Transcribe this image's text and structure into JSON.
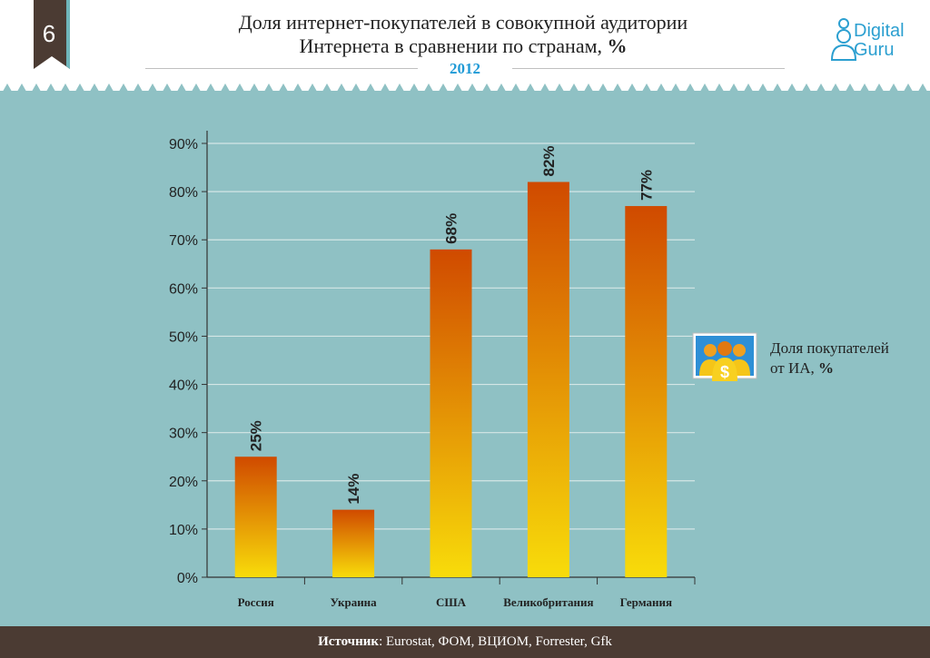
{
  "page": {
    "slide_number": "6",
    "title_line1": "Доля интернет-покупателей в совокупной аудитории",
    "title_line2": "Интернета в сравнении по странам,",
    "title_unit": "%",
    "year": "2012",
    "logo_line1": "Digital",
    "logo_line2": "Guru",
    "source_label": "Источник",
    "source_text": ": Eurostat, ФОМ, ВЦИОМ, Forrester, Gfk"
  },
  "legend": {
    "label_line1": "Доля покупателей",
    "label_line2": "от ИА,",
    "label_unit": "%",
    "icon": "people-dollar-icon"
  },
  "colors": {
    "background": "#8fc1c4",
    "bar_top": "#d04a00",
    "bar_bottom": "#f8dc0a",
    "accent": "#1f9ad6",
    "footer": "#4b3b33"
  },
  "chart_data": {
    "type": "bar",
    "categories": [
      "Россия",
      "Украина",
      "США",
      "Великобритания",
      "Германия"
    ],
    "values": [
      25,
      14,
      68,
      82,
      77
    ],
    "data_labels": [
      "25%",
      "14%",
      "68%",
      "82%",
      "77%"
    ],
    "y_ticks": [
      "0%",
      "10%",
      "20%",
      "30%",
      "40%",
      "50%",
      "60%",
      "70%",
      "80%",
      "90%"
    ],
    "ylim": [
      0,
      90
    ],
    "grid": true,
    "legend_position": "right"
  }
}
